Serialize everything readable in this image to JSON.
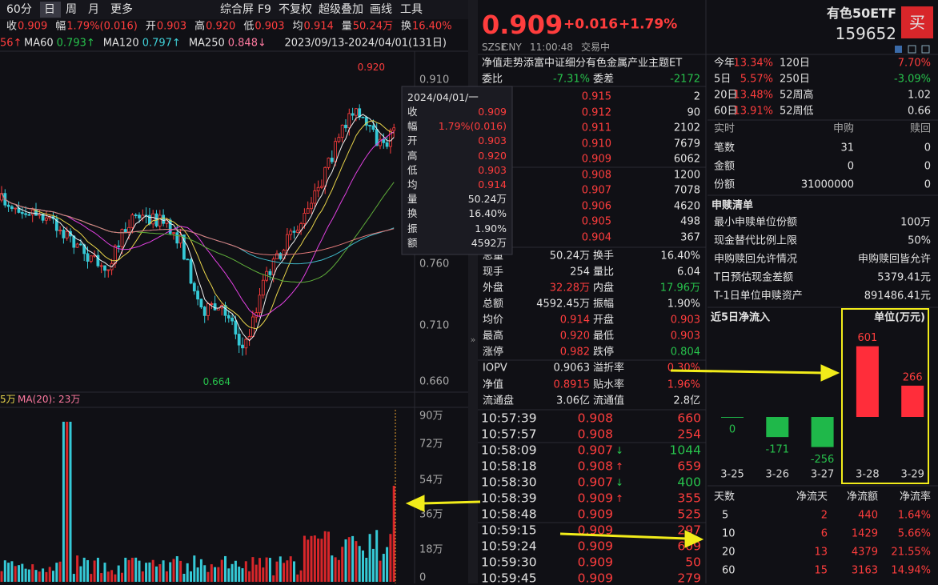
{
  "toolbar": {
    "periods": [
      "60分",
      "日",
      "周",
      "月",
      "更多"
    ],
    "tools": [
      "综合屏",
      "F9",
      "不复权",
      "超级叠加",
      "画线",
      "工具"
    ]
  },
  "info_bar": [
    {
      "label": "收",
      "value": "0.909"
    },
    {
      "label": "幅",
      "value": "1.79%(0.016)"
    },
    {
      "label": "开",
      "value": "0.903"
    },
    {
      "label": "高",
      "value": "0.920"
    },
    {
      "label": "低",
      "value": "0.903"
    },
    {
      "label": "均",
      "value": "0.914"
    },
    {
      "label": "量",
      "value": "50.24万"
    },
    {
      "label": "换",
      "value": "16.40%"
    }
  ],
  "ma_bar": {
    "cut": "56↑",
    "items": [
      {
        "name": "MA60",
        "value": "0.793↑"
      },
      {
        "name": "MA120",
        "value": "0.797↑"
      },
      {
        "name": "MA250",
        "value": "0.848↓"
      }
    ],
    "range": "2023/09/13-2024/04/01(131日)"
  },
  "price_axis": [
    "0.910",
    "0.760",
    "0.710",
    "0.660"
  ],
  "price_marks": {
    "high": "0.920",
    "low": "0.664"
  },
  "tooltip": {
    "date": "2024/04/01/一",
    "rows": [
      {
        "label": "收",
        "value": "0.909"
      },
      {
        "label": "幅",
        "value": "1.79%(0.016)"
      },
      {
        "label": "开",
        "value": "0.903"
      },
      {
        "label": "高",
        "value": "0.920"
      },
      {
        "label": "低",
        "value": "0.903"
      },
      {
        "label": "均",
        "value": "0.914"
      },
      {
        "label": "量",
        "value": "50.24万"
      },
      {
        "label": "换",
        "value": "16.40%"
      },
      {
        "label": "振",
        "value": "1.90%"
      },
      {
        "label": "额",
        "value": "4592万"
      }
    ]
  },
  "volume": {
    "cut": "5万",
    "ma": "MA(20): 23万",
    "axis": [
      "90万",
      "72万",
      "54万",
      "36万",
      "18万",
      "0"
    ]
  },
  "quote": {
    "price": "0.909",
    "change": "+0.016",
    "pct": "+1.79%",
    "exchange": "SZSE",
    "currency": "CNY",
    "time": "11:00:48",
    "status": "交易中",
    "fund_name": "净值走势添富中证细分有色金属产业主题ET",
    "ratio_label": "委比",
    "ratio": "-7.31%",
    "diff_label": "委差",
    "diff": "-2172"
  },
  "order_book": [
    [
      "0.915",
      "2"
    ],
    [
      "0.912",
      "90"
    ],
    [
      "0.911",
      "2102"
    ],
    [
      "0.910",
      "7679"
    ],
    [
      "0.909",
      "6062"
    ],
    [
      "0.908",
      "1200"
    ],
    [
      "0.907",
      "7078"
    ],
    [
      "0.906",
      "4620"
    ],
    [
      "0.905",
      "498"
    ],
    [
      "0.904",
      "367"
    ]
  ],
  "stats": [
    [
      "总量",
      "50.24万",
      "换手",
      "16.40%"
    ],
    [
      "现手",
      "254",
      "量比",
      "6.04"
    ],
    [
      "外盘",
      "32.28万",
      "内盘",
      "17.96万"
    ],
    [
      "总额",
      "4592.45万",
      "振幅",
      "1.90%"
    ],
    [
      "均价",
      "0.914",
      "开盘",
      "0.903"
    ],
    [
      "最高",
      "0.920",
      "最低",
      "0.903"
    ],
    [
      "涨停",
      "0.982",
      "跌停",
      "0.804"
    ]
  ],
  "nav": [
    [
      "IOPV",
      "0.9063",
      "溢折率",
      "0.30%"
    ],
    [
      "净值",
      "0.8915",
      "贴水率",
      "1.96%"
    ],
    [
      "流通盘",
      "3.06亿",
      "流通值",
      "2.8亿"
    ]
  ],
  "trades": [
    {
      "time": "10:57:39",
      "price": "0.908",
      "volume": "660"
    },
    {
      "time": "10:57:57",
      "price": "0.908",
      "volume": "254"
    },
    {
      "time": "10:58:09",
      "price": "0.907",
      "dir": "↓",
      "volume": "1044"
    },
    {
      "time": "10:58:18",
      "price": "0.908",
      "dir": "↑",
      "volume": "659"
    },
    {
      "time": "10:58:30",
      "price": "0.907",
      "dir": "↓",
      "volume": "400"
    },
    {
      "time": "10:58:39",
      "price": "0.909",
      "dir": "↑",
      "volume": "355"
    },
    {
      "time": "10:58:48",
      "price": "0.909",
      "volume": "525"
    },
    {
      "time": "10:59:15",
      "price": "0.909",
      "volume": "297"
    },
    {
      "time": "10:59:24",
      "price": "0.909",
      "volume": "609"
    },
    {
      "time": "10:59:30",
      "price": "0.909",
      "volume": "50"
    },
    {
      "time": "10:59:45",
      "price": "0.909",
      "volume": "279"
    }
  ],
  "fund": {
    "name": "有色50ETF",
    "code": "159652",
    "buy": "买"
  },
  "periods": [
    [
      "今年",
      "13.34%",
      "120日",
      "7.70%"
    ],
    [
      "5日",
      "5.57%",
      "250日",
      "-3.09%"
    ],
    [
      "20日",
      "13.48%",
      "52周高",
      "1.02"
    ],
    [
      "60日",
      "13.91%",
      "52周低",
      "0.66"
    ]
  ],
  "realtime": {
    "header": [
      "实时",
      "申购",
      "赎回"
    ],
    "rows": [
      [
        "笔数",
        "31",
        "0"
      ],
      [
        "金额",
        "0",
        "0"
      ],
      [
        "份额",
        "31000000",
        "0"
      ]
    ]
  },
  "redemption": {
    "title": "申赎清单",
    "rows": [
      [
        "最小申赎单位份额",
        "100万"
      ],
      [
        "现金替代比例上限",
        "50%"
      ],
      [
        "申购赎回允许情况",
        "申购赎回皆允许"
      ],
      [
        "T日预估现金差额",
        "5379.41元"
      ],
      [
        "T-1日单位申赎资产",
        "891486.41元"
      ]
    ]
  },
  "net_inflow": {
    "title": "近5日净流入",
    "unit": "单位(万元)",
    "dates": [
      "3-25",
      "3-26",
      "3-27",
      "3-28",
      "3-29"
    ],
    "values": [
      0,
      -171,
      -256,
      601,
      266
    ]
  },
  "flow_table": {
    "header": [
      "天数",
      "净流天",
      "净流额",
      "净流率"
    ],
    "rows": [
      [
        "5",
        "2",
        "440",
        "1.64%"
      ],
      [
        "10",
        "6",
        "1429",
        "5.66%"
      ],
      [
        "20",
        "13",
        "4379",
        "21.55%"
      ],
      [
        "60",
        "15",
        "3163",
        "14.94%"
      ]
    ]
  }
}
